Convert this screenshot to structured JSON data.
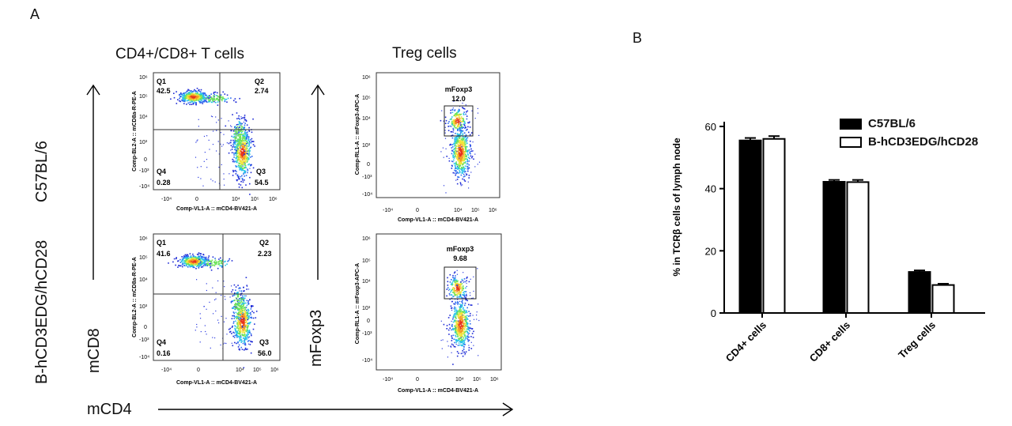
{
  "panels": {
    "a_letter": "A",
    "b_letter": "B"
  },
  "columns": {
    "tcells_title": "CD4+/CD8+ T cells",
    "treg_title": "Treg cells"
  },
  "rows": {
    "top_label": "C57BL/6",
    "bottom_label": "B-hCD3EDG/hCD28"
  },
  "axes": {
    "y1_name": "mCD8",
    "y2_name": "mFoxp3",
    "x_name": "mCD4"
  },
  "facs": {
    "xlabel_tcell": "Comp-VL1-A :: mCD4-BV421-A",
    "ylabel_tcell": "Comp-BL2-A :: mCD8a-R-PE-A",
    "xlabel_treg": "Comp-VL1-A :: mCD4-BV421-A",
    "ylabel_treg": "Comp-RL1-A :: mFoxp3-APC-A",
    "x_ticks": [
      "-10⁴",
      "0",
      "10⁴",
      "10⁵",
      "10⁶"
    ],
    "y_ticks": [
      "10⁶",
      "10⁵",
      "10⁴",
      "10³",
      "0",
      "-10³",
      "-10⁴"
    ],
    "y_ticks_tcell": [
      "10⁶",
      "10⁵",
      "10⁴",
      "10³",
      "0",
      "-10³",
      "-10⁴"
    ],
    "top_tcell": {
      "q1": "Q1",
      "q1v": "42.5",
      "q2": "Q2",
      "q2v": "2.74",
      "q3": "Q3",
      "q3v": "54.5",
      "q4": "Q4",
      "q4v": "0.28"
    },
    "bottom_tcell": {
      "q1": "Q1",
      "q1v": "41.6",
      "q2": "Q2",
      "q2v": "2.23",
      "q3": "Q3",
      "q3v": "56.0",
      "q4": "Q4",
      "q4v": "0.16"
    },
    "top_treg": {
      "gate": "mFoxp3",
      "value": "12.0"
    },
    "bottom_treg": {
      "gate": "mFoxp3",
      "value": "9.68"
    }
  },
  "chart_data": {
    "type": "bar",
    "categories": [
      "CD4+ cells",
      "CD8+ cells",
      "Treg cells"
    ],
    "series": [
      {
        "name": "C57BL/6",
        "values": [
          55.5,
          42.2,
          13.2
        ],
        "errors": [
          0.8,
          0.6,
          0.5
        ],
        "fill": "#000000"
      },
      {
        "name": "B-hCD3EDG/hCD28",
        "values": [
          56.0,
          42.1,
          9.0
        ],
        "errors": [
          0.9,
          0.7,
          0.4
        ],
        "fill": "#ffffff"
      }
    ],
    "xlabel": "",
    "ylabel": "% in TCRβ cells of lymph node",
    "ylim": [
      0,
      60
    ],
    "yticks": [
      0,
      20,
      40,
      60
    ],
    "legend_position": "top-right"
  }
}
